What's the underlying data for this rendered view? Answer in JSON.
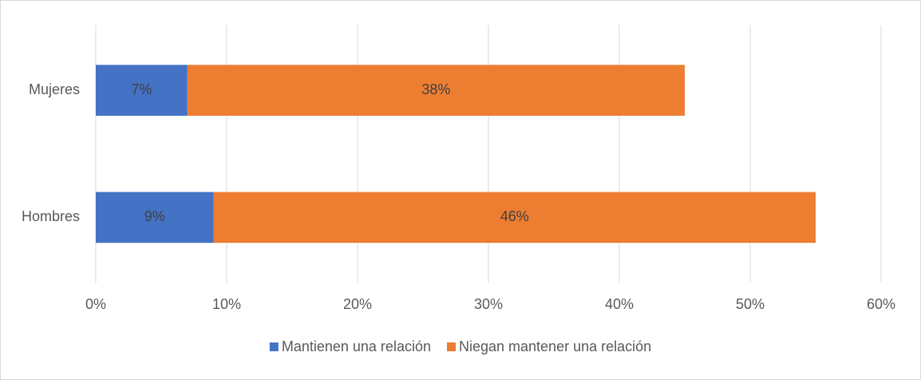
{
  "chart_data": {
    "type": "bar",
    "orientation": "horizontal",
    "stacked": true,
    "categories": [
      "Mujeres",
      "Hombres"
    ],
    "series": [
      {
        "name": "Mantienen una relación",
        "color": "#4472c4",
        "values": [
          7,
          9
        ],
        "value_labels": [
          "7%",
          "9%"
        ]
      },
      {
        "name": "Niegan mantener una relación",
        "color": "#ed7d31",
        "values": [
          38,
          46
        ],
        "value_labels": [
          "38%",
          "46%"
        ]
      }
    ],
    "xlim": [
      0,
      60
    ],
    "xticks": [
      {
        "value": 0,
        "label": "0%"
      },
      {
        "value": 10,
        "label": "10%"
      },
      {
        "value": 20,
        "label": "20%"
      },
      {
        "value": 30,
        "label": "30%"
      },
      {
        "value": 40,
        "label": "40%"
      },
      {
        "value": 50,
        "label": "50%"
      },
      {
        "value": 60,
        "label": "60%"
      }
    ],
    "grid": true,
    "legend": "bottom"
  }
}
